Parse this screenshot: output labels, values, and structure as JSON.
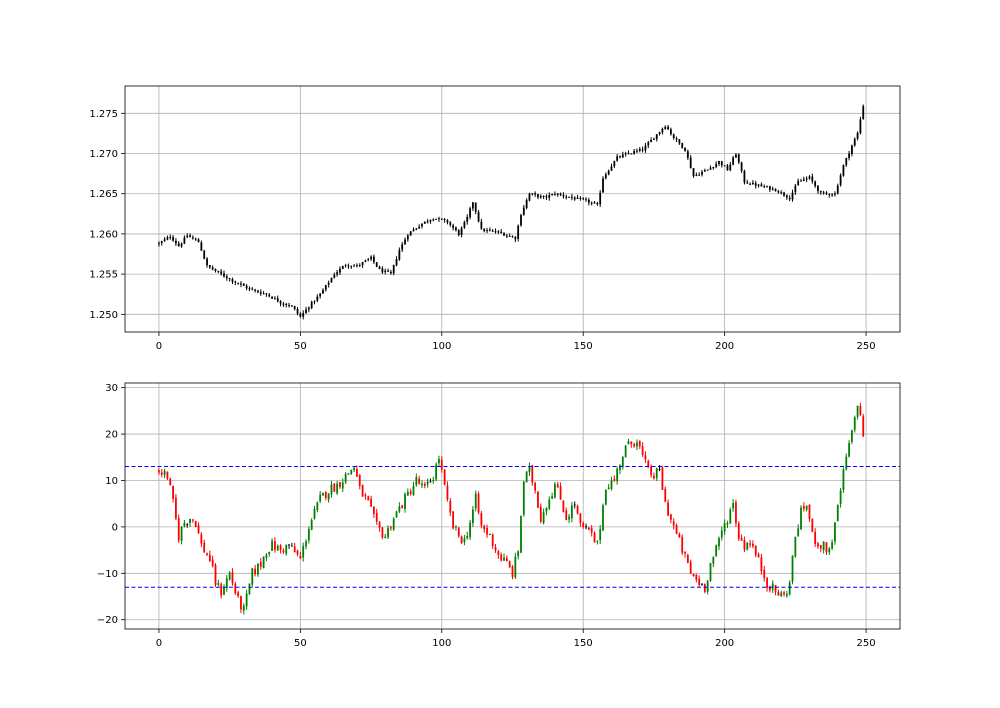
{
  "chart_data": [
    {
      "type": "ohlc",
      "title": "",
      "xlabel": "",
      "ylabel": "",
      "xlim": [
        -12,
        262
      ],
      "ylim": [
        1.2478,
        1.2784
      ],
      "xticks": [
        0,
        50,
        100,
        150,
        200,
        250
      ],
      "xtick_labels": [
        "0",
        "50",
        "100",
        "150",
        "200",
        "250"
      ],
      "yticks": [
        1.25,
        1.255,
        1.26,
        1.265,
        1.27,
        1.275
      ],
      "ytick_labels": [
        "1.250",
        "1.255",
        "1.260",
        "1.265",
        "1.270",
        "1.275"
      ],
      "grid": true,
      "bar_color": "#000000",
      "anchors_close": [
        [
          0,
          1.2588
        ],
        [
          4,
          1.2597
        ],
        [
          7,
          1.2585
        ],
        [
          10,
          1.2598
        ],
        [
          14,
          1.259
        ],
        [
          17,
          1.256
        ],
        [
          22,
          1.255
        ],
        [
          27,
          1.254
        ],
        [
          33,
          1.253
        ],
        [
          38,
          1.2525
        ],
        [
          43,
          1.2515
        ],
        [
          47,
          1.251
        ],
        [
          50,
          1.2497
        ],
        [
          53,
          1.251
        ],
        [
          57,
          1.2525
        ],
        [
          62,
          1.255
        ],
        [
          66,
          1.2562
        ],
        [
          70,
          1.256
        ],
        [
          75,
          1.257
        ],
        [
          78,
          1.2555
        ],
        [
          82,
          1.255
        ],
        [
          85,
          1.258
        ],
        [
          88,
          1.26
        ],
        [
          93,
          1.2613
        ],
        [
          97,
          1.262
        ],
        [
          102,
          1.2615
        ],
        [
          106,
          1.26
        ],
        [
          109,
          1.262
        ],
        [
          111,
          1.264
        ],
        [
          114,
          1.2605
        ],
        [
          120,
          1.2602
        ],
        [
          126,
          1.2595
        ],
        [
          128,
          1.2625
        ],
        [
          131,
          1.265
        ],
        [
          136,
          1.2645
        ],
        [
          140,
          1.265
        ],
        [
          146,
          1.2645
        ],
        [
          152,
          1.264
        ],
        [
          155,
          1.2635
        ],
        [
          157,
          1.267
        ],
        [
          162,
          1.2695
        ],
        [
          166,
          1.27
        ],
        [
          171,
          1.2705
        ],
        [
          175,
          1.272
        ],
        [
          179,
          1.2735
        ],
        [
          182,
          1.272
        ],
        [
          186,
          1.2705
        ],
        [
          189,
          1.2672
        ],
        [
          194,
          1.268
        ],
        [
          198,
          1.269
        ],
        [
          201,
          1.268
        ],
        [
          204,
          1.27
        ],
        [
          207,
          1.2665
        ],
        [
          212,
          1.266
        ],
        [
          218,
          1.2655
        ],
        [
          223,
          1.2645
        ],
        [
          226,
          1.2665
        ],
        [
          230,
          1.267
        ],
        [
          234,
          1.265
        ],
        [
          239,
          1.265
        ],
        [
          242,
          1.2685
        ],
        [
          245,
          1.271
        ],
        [
          247,
          1.2725
        ],
        [
          249,
          1.276
        ]
      ]
    },
    {
      "type": "ohlc",
      "title": "",
      "xlabel": "",
      "ylabel": "",
      "xlim": [
        -12,
        262
      ],
      "ylim": [
        -22,
        31
      ],
      "xticks": [
        0,
        50,
        100,
        150,
        200,
        250
      ],
      "xtick_labels": [
        "0",
        "50",
        "100",
        "150",
        "200",
        "250"
      ],
      "yticks": [
        -20,
        -10,
        0,
        10,
        20,
        30
      ],
      "ytick_labels": [
        "−20",
        "−10",
        "0",
        "10",
        "20",
        "30"
      ],
      "grid": true,
      "up_color": "#008000",
      "down_color": "#ff0000",
      "neutral_color": "#000000",
      "hlines": [
        {
          "y": 13,
          "color": "#0000ff",
          "style": "dashed"
        },
        {
          "y": -13,
          "color": "#0000ff",
          "style": "dashed"
        }
      ],
      "anchors_close": [
        [
          0,
          12
        ],
        [
          3,
          11
        ],
        [
          5,
          5
        ],
        [
          7,
          -2
        ],
        [
          9,
          1
        ],
        [
          11,
          2
        ],
        [
          13,
          1
        ],
        [
          15,
          -4
        ],
        [
          18,
          -7
        ],
        [
          20,
          -12
        ],
        [
          22,
          -14
        ],
        [
          25,
          -10
        ],
        [
          28,
          -16
        ],
        [
          30,
          -18
        ],
        [
          33,
          -10
        ],
        [
          36,
          -8
        ],
        [
          38,
          -5
        ],
        [
          40,
          -4
        ],
        [
          43,
          -5
        ],
        [
          46,
          -4
        ],
        [
          50,
          -7
        ],
        [
          53,
          0
        ],
        [
          57,
          6
        ],
        [
          60,
          8
        ],
        [
          63,
          9
        ],
        [
          66,
          11
        ],
        [
          69,
          13
        ],
        [
          71,
          8
        ],
        [
          74,
          5
        ],
        [
          77,
          0
        ],
        [
          80,
          -2
        ],
        [
          83,
          2
        ],
        [
          86,
          5
        ],
        [
          88,
          7
        ],
        [
          91,
          10
        ],
        [
          94,
          8
        ],
        [
          97,
          11
        ],
        [
          99,
          15
        ],
        [
          102,
          5
        ],
        [
          104,
          0
        ],
        [
          106,
          -2
        ],
        [
          108,
          -3
        ],
        [
          110,
          1
        ],
        [
          112,
          6
        ],
        [
          114,
          0
        ],
        [
          117,
          -2
        ],
        [
          120,
          -6
        ],
        [
          123,
          -8
        ],
        [
          125,
          -10
        ],
        [
          127,
          -5
        ],
        [
          129,
          10
        ],
        [
          131,
          12
        ],
        [
          133,
          8
        ],
        [
          135,
          2
        ],
        [
          137,
          5
        ],
        [
          140,
          9
        ],
        [
          142,
          6
        ],
        [
          144,
          2
        ],
        [
          147,
          5
        ],
        [
          149,
          0
        ],
        [
          152,
          -1
        ],
        [
          155,
          -4
        ],
        [
          158,
          9
        ],
        [
          161,
          10
        ],
        [
          163,
          14
        ],
        [
          165,
          17
        ],
        [
          167,
          18
        ],
        [
          169,
          19
        ],
        [
          171,
          15
        ],
        [
          173,
          12
        ],
        [
          175,
          11
        ],
        [
          177,
          12
        ],
        [
          179,
          5
        ],
        [
          182,
          0
        ],
        [
          185,
          -5
        ],
        [
          188,
          -10
        ],
        [
          191,
          -12
        ],
        [
          193,
          -13
        ],
        [
          195,
          -8
        ],
        [
          197,
          -5
        ],
        [
          199,
          -1
        ],
        [
          201,
          2
        ],
        [
          203,
          5
        ],
        [
          205,
          -2
        ],
        [
          207,
          -4
        ],
        [
          209,
          -3
        ],
        [
          211,
          -6
        ],
        [
          213,
          -9
        ],
        [
          215,
          -12
        ],
        [
          218,
          -14
        ],
        [
          221,
          -15
        ],
        [
          223,
          -12
        ],
        [
          225,
          -2
        ],
        [
          227,
          3
        ],
        [
          229,
          5
        ],
        [
          231,
          -2
        ],
        [
          234,
          -4
        ],
        [
          237,
          -5
        ],
        [
          239,
          0
        ],
        [
          241,
          8
        ],
        [
          243,
          15
        ],
        [
          245,
          20
        ],
        [
          247,
          27
        ],
        [
          249,
          20
        ]
      ]
    }
  ]
}
